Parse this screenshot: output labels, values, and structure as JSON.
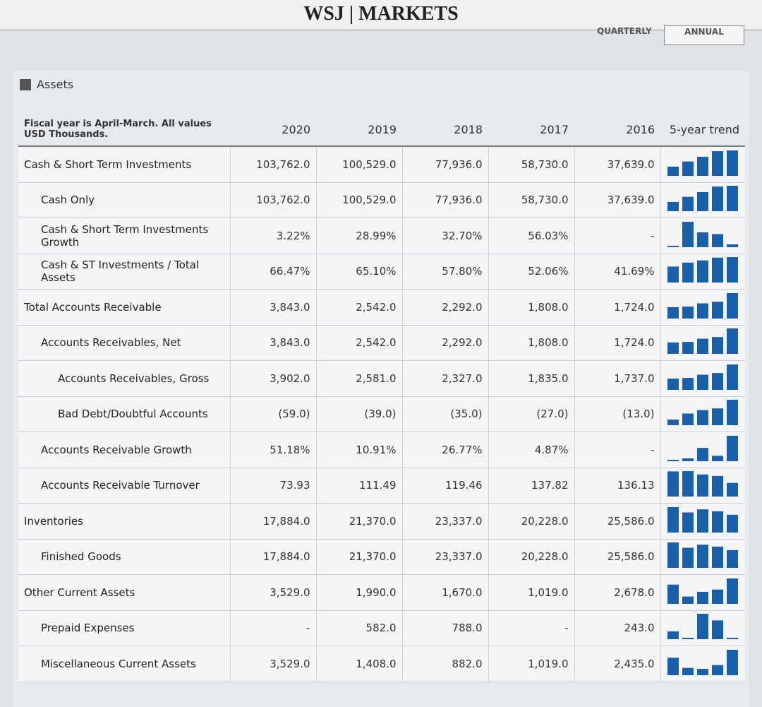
{
  "header": {
    "brand": "WSJ",
    "section": "MARKETS",
    "tabs": [
      "QUARTERLY",
      "ANNUAL"
    ]
  },
  "panel": {
    "title": "Assets",
    "note": "Fiscal year is April-March. All values USD Thousands."
  },
  "table": {
    "columns": [
      "2020",
      "2019",
      "2018",
      "2017",
      "2016",
      "5-year trend"
    ],
    "rows": [
      {
        "label": "Cash & Short Term Investments",
        "values": [
          "103,762.0",
          "100,529.0",
          "77,936.0",
          "58,730.0",
          "37,639.0"
        ]
      },
      {
        "label": "Cash Only",
        "values": [
          "103,762.0",
          "100,529.0",
          "77,936.0",
          "58,730.0",
          "37,639.0"
        ]
      },
      {
        "label": "Cash & Short Term Investments Growth",
        "values": [
          "3.22%",
          "28.99%",
          "32.70%",
          "56.03%",
          "-"
        ]
      },
      {
        "label": "Cash & ST Investments / Total Assets",
        "values": [
          "66.47%",
          "65.10%",
          "57.80%",
          "52.06%",
          "41.69%"
        ]
      },
      {
        "label": "Total Accounts Receivable",
        "values": [
          "3,843.0",
          "2,542.0",
          "2,292.0",
          "1,808.0",
          "1,724.0"
        ]
      },
      {
        "label": "Accounts Receivables, Net",
        "values": [
          "3,843.0",
          "2,542.0",
          "2,292.0",
          "1,808.0",
          "1,724.0"
        ]
      },
      {
        "label": "Accounts Receivables, Gross",
        "values": [
          "3,902.0",
          "2,581.0",
          "2,327.0",
          "1,835.0",
          "1,737.0"
        ]
      },
      {
        "label": "Bad Debt/Doubtful Accounts",
        "values": [
          "(59.0)",
          "(39.0)",
          "(35.0)",
          "(27.0)",
          "(13.0)"
        ]
      },
      {
        "label": "Accounts Receivable Growth",
        "values": [
          "51.18%",
          "10.91%",
          "26.77%",
          "4.87%",
          "-"
        ]
      },
      {
        "label": "Accounts Receivable Turnover",
        "values": [
          "73.93",
          "111.49",
          "119.46",
          "137.82",
          "136.13"
        ]
      },
      {
        "label": "Inventories",
        "values": [
          "17,884.0",
          "21,370.0",
          "23,337.0",
          "20,228.0",
          "25,586.0"
        ]
      },
      {
        "label": "Finished Goods",
        "values": [
          "17,884.0",
          "21,370.0",
          "23,337.0",
          "20,228.0",
          "25,586.0"
        ]
      },
      {
        "label": "Other Current Assets",
        "values": [
          "3,529.0",
          "1,990.0",
          "1,670.0",
          "1,019.0",
          "2,678.0"
        ]
      },
      {
        "label": "Prepaid Expenses",
        "values": [
          "-",
          "582.0",
          "788.0",
          "-",
          "243.0"
        ]
      },
      {
        "label": "Miscellaneous Current Assets",
        "values": [
          "3,529.0",
          "1,408.0",
          "882.0",
          "1,019.0",
          "2,435.0"
        ]
      }
    ]
  }
}
